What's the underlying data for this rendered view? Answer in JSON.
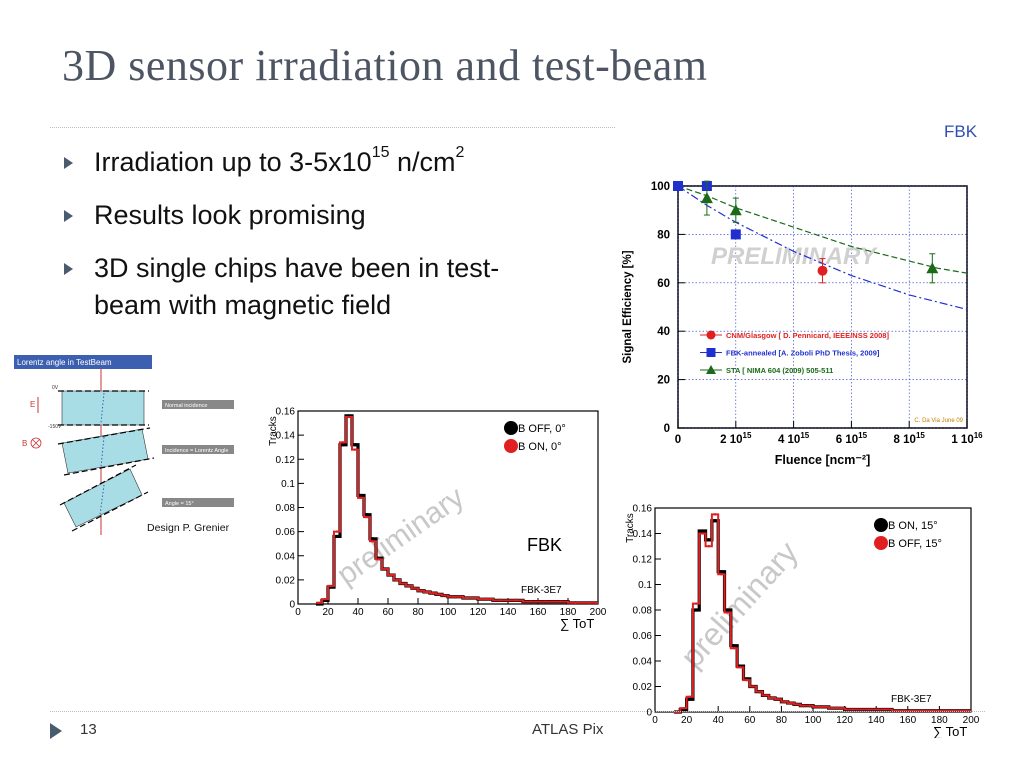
{
  "slide": {
    "title": "3D sensor irradiation and test-beam",
    "fbk_tag": "FBK",
    "bullets": [
      {
        "pre": "Irradiation up to 3-5x10",
        "sup1": "15",
        "mid": " n/cm",
        "sup2": "2"
      },
      {
        "text": "Results look promising"
      },
      {
        "text": "3D single chips have been in test-beam with magnetic field"
      }
    ],
    "page_number": "13",
    "footer_text": "ATLAS Pix"
  },
  "lorentz": {
    "header": "Lorentz angle in TestBeam",
    "labels": [
      "Normal incidence",
      "Incidence = Lorentz Angle",
      "Angle = 15°"
    ],
    "side_labels": [
      "0V",
      "-150V"
    ],
    "field_symbols": [
      "E",
      "B"
    ],
    "caption": "Design  P. Grenier"
  },
  "chart_data": [
    {
      "type": "line",
      "id": "hist-0deg",
      "ylabel": "Tracks",
      "xlabel": "∑ ToT",
      "xlim": [
        0,
        200
      ],
      "ylim": [
        0,
        0.16
      ],
      "xticks": [
        "0",
        "20",
        "40",
        "60",
        "80",
        "100",
        "120",
        "140",
        "160",
        "180",
        "200"
      ],
      "yticks": [
        "0",
        "0.02",
        "0.04",
        "0.06",
        "0.08",
        "0.1",
        "0.12",
        "0.14",
        "0.16"
      ],
      "series": [
        {
          "name": "B OFF, 0°",
          "color": "#000000",
          "x": [
            12,
            16,
            20,
            24,
            28,
            32,
            36,
            40,
            44,
            48,
            52,
            56,
            60,
            64,
            68,
            72,
            76,
            80,
            84,
            88,
            92,
            96,
            100,
            110,
            120,
            130,
            140,
            150,
            160,
            170,
            180,
            190,
            198
          ],
          "y": [
            0.0,
            0.003,
            0.014,
            0.056,
            0.132,
            0.156,
            0.132,
            0.09,
            0.074,
            0.054,
            0.038,
            0.029,
            0.024,
            0.02,
            0.017,
            0.015,
            0.013,
            0.011,
            0.01,
            0.009,
            0.008,
            0.007,
            0.006,
            0.005,
            0.004,
            0.003,
            0.003,
            0.002,
            0.002,
            0.002,
            0.001,
            0.001,
            0.001
          ]
        },
        {
          "name": "B ON, 0°",
          "color": "#e02020",
          "x": [
            12,
            16,
            20,
            24,
            28,
            32,
            36,
            40,
            44,
            48,
            52,
            56,
            60,
            64,
            68,
            72,
            76,
            80,
            84,
            88,
            92,
            96,
            100,
            110,
            120,
            130,
            140,
            150,
            160,
            170,
            180,
            190,
            198
          ],
          "y": [
            0.001,
            0.004,
            0.015,
            0.06,
            0.134,
            0.155,
            0.128,
            0.088,
            0.072,
            0.052,
            0.037,
            0.029,
            0.024,
            0.02,
            0.017,
            0.015,
            0.013,
            0.011,
            0.01,
            0.009,
            0.008,
            0.007,
            0.006,
            0.005,
            0.004,
            0.003,
            0.003,
            0.002,
            0.002,
            0.002,
            0.001,
            0.001,
            0.001
          ]
        }
      ],
      "annotations": [
        "FBK",
        "FBK-3E7",
        "preliminary"
      ]
    },
    {
      "type": "line",
      "id": "hist-15deg",
      "ylabel": "Tracks",
      "xlabel": "∑ ToT",
      "xlim": [
        0,
        200
      ],
      "ylim": [
        0,
        0.16
      ],
      "xticks": [
        "0",
        "20",
        "40",
        "60",
        "80",
        "100",
        "120",
        "140",
        "160",
        "180",
        "200"
      ],
      "yticks": [
        "0",
        "0.02",
        "0.04",
        "0.06",
        "0.08",
        "0.1",
        "0.12",
        "0.14",
        "0.16"
      ],
      "series": [
        {
          "name": "B ON, 15°",
          "color": "#000000",
          "x": [
            12,
            16,
            20,
            24,
            28,
            32,
            36,
            40,
            44,
            48,
            52,
            56,
            60,
            64,
            68,
            72,
            76,
            80,
            84,
            88,
            92,
            96,
            100,
            110,
            120,
            130,
            140,
            150,
            160,
            170,
            180,
            190,
            198
          ],
          "y": [
            0.0,
            0.002,
            0.01,
            0.08,
            0.142,
            0.135,
            0.15,
            0.11,
            0.08,
            0.052,
            0.036,
            0.026,
            0.02,
            0.016,
            0.013,
            0.011,
            0.01,
            0.008,
            0.007,
            0.006,
            0.005,
            0.005,
            0.004,
            0.003,
            0.002,
            0.002,
            0.002,
            0.001,
            0.001,
            0.001,
            0.001,
            0.001,
            0.001
          ]
        },
        {
          "name": "B OFF, 15°",
          "color": "#e02020",
          "x": [
            12,
            16,
            20,
            24,
            28,
            32,
            36,
            40,
            44,
            48,
            52,
            56,
            60,
            64,
            68,
            72,
            76,
            80,
            84,
            88,
            92,
            96,
            100,
            110,
            120,
            130,
            140,
            150,
            160,
            170,
            180,
            190,
            198
          ],
          "y": [
            0.0,
            0.003,
            0.012,
            0.085,
            0.14,
            0.13,
            0.155,
            0.108,
            0.078,
            0.05,
            0.035,
            0.025,
            0.02,
            0.016,
            0.013,
            0.011,
            0.01,
            0.008,
            0.007,
            0.006,
            0.005,
            0.005,
            0.004,
            0.003,
            0.002,
            0.002,
            0.002,
            0.001,
            0.001,
            0.001,
            0.001,
            0.001,
            0.001
          ]
        }
      ],
      "annotations": [
        "FBK-3E7",
        "preliminary"
      ]
    },
    {
      "type": "scatter",
      "id": "signal-efficiency",
      "ylabel": "Signal Efficiency [%]",
      "xlabel": "Fluence [ncm⁻²]",
      "xlim": [
        0,
        10
      ],
      "ylim": [
        0,
        100
      ],
      "xticks": [
        {
          "v": 0,
          "base": "0",
          "exp": ""
        },
        {
          "v": 2,
          "base": "2 10",
          "exp": "15"
        },
        {
          "v": 4,
          "base": "4 10",
          "exp": "15"
        },
        {
          "v": 6,
          "base": "6 10",
          "exp": "15"
        },
        {
          "v": 8,
          "base": "8 10",
          "exp": "15"
        },
        {
          "v": 10,
          "base": "1 10",
          "exp": "16"
        }
      ],
      "yticks": [
        "0",
        "20",
        "40",
        "60",
        "80",
        "100"
      ],
      "series": [
        {
          "name": "CNM/Glasgow [ D. Pennicard, IEEE/NSS 2008]",
          "color": "#e02020",
          "marker": "circle",
          "x": [
            0,
            5.0
          ],
          "y": [
            100,
            65
          ],
          "err": [
            0,
            5
          ]
        },
        {
          "name": "FBK-annealed [A. Zoboli PhD Thesis, 2009]",
          "color": "#2030d0",
          "marker": "square",
          "x": [
            0,
            1.0,
            2.0
          ],
          "y": [
            100,
            100,
            80
          ],
          "err": [
            0,
            0,
            0
          ]
        },
        {
          "name": "STA [ NIMA 604 (2009) 505-511",
          "color": "#1a6a1a",
          "marker": "triangle",
          "x": [
            1.0,
            2.0,
            8.8
          ],
          "y": [
            95,
            90,
            66
          ],
          "err": [
            7,
            5,
            6
          ]
        }
      ],
      "fits": [
        {
          "color": "#2030d0",
          "style": "dashdot",
          "x": [
            0,
            1,
            2,
            3,
            4,
            5,
            6,
            7,
            8,
            9,
            10
          ],
          "y": [
            100,
            92,
            85,
            79,
            73,
            68,
            63,
            59,
            55,
            52,
            49
          ]
        },
        {
          "color": "#1a6a1a",
          "style": "dashed",
          "x": [
            0,
            1,
            2,
            3,
            4,
            5,
            6,
            7,
            8,
            9,
            10
          ],
          "y": [
            100,
            96,
            91,
            87,
            83,
            79,
            75,
            72,
            69,
            66,
            64
          ]
        }
      ],
      "annotations": [
        "PRELIMINARY",
        "C. Da Via June 09"
      ]
    }
  ]
}
